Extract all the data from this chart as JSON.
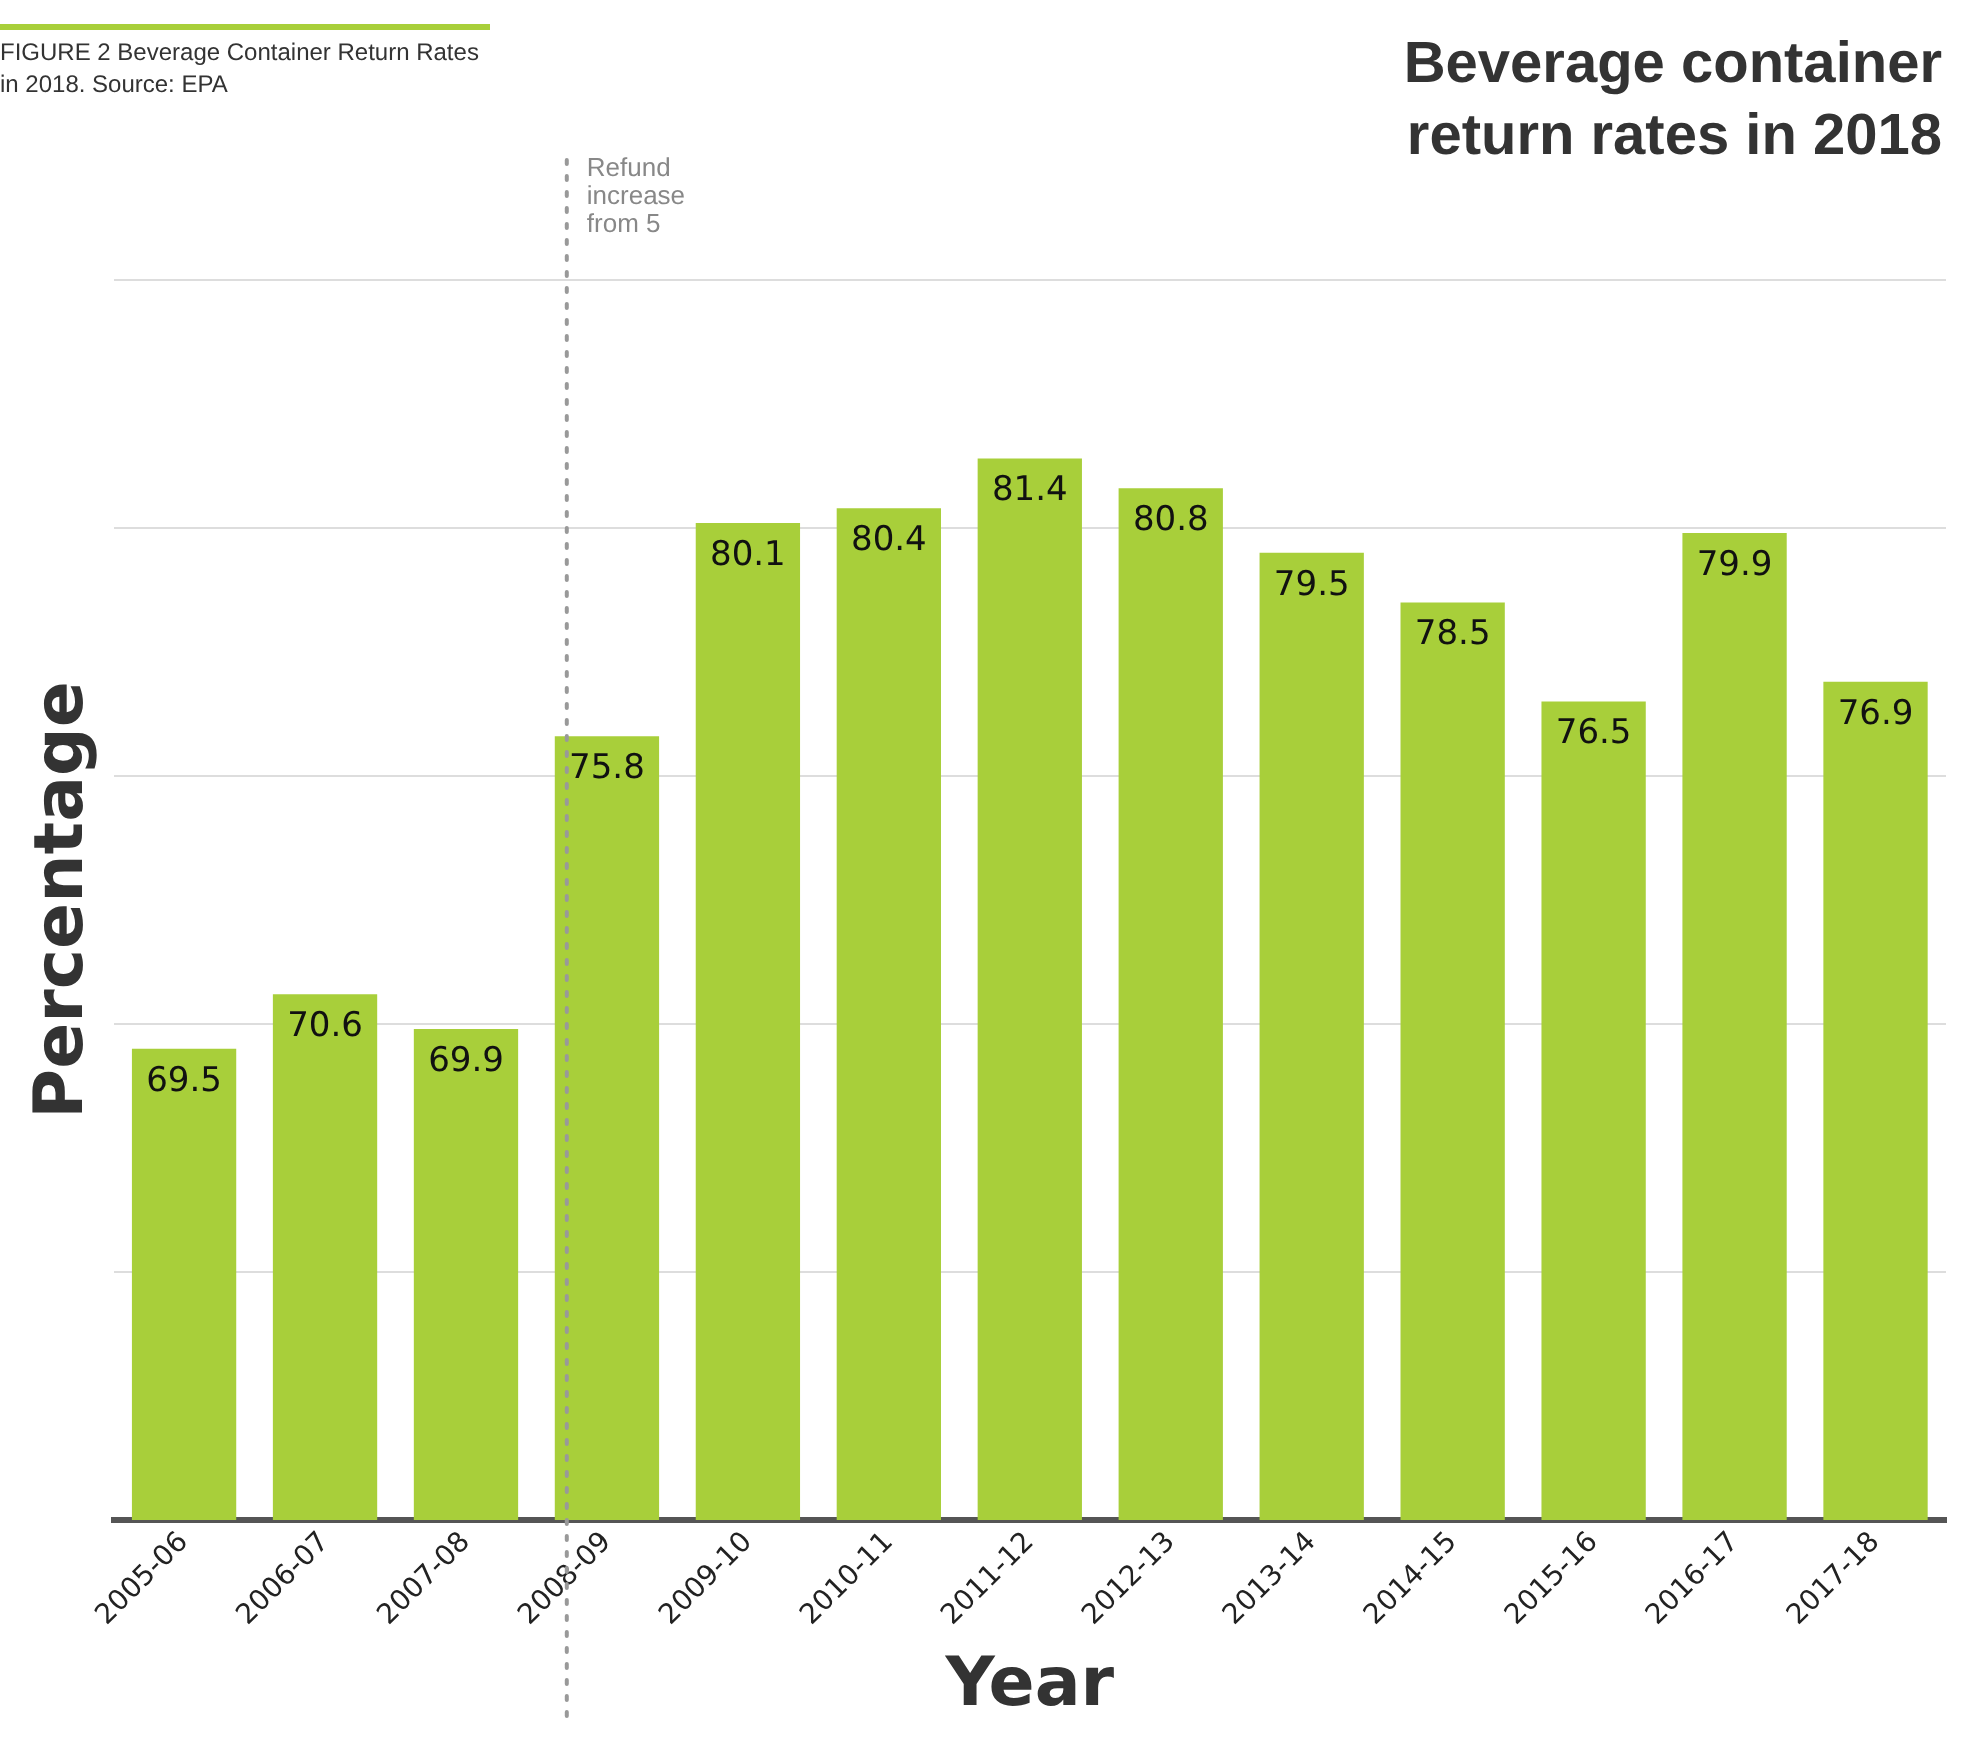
{
  "chart_data": {
    "type": "bar",
    "title": "Beverage container return rates in 2018",
    "xlabel": "Year",
    "ylabel": "Percentage",
    "annotations": [
      "FIGURE 2 Beverage Container Return Rates in 2018. Source: EPA"
    ],
    "categories": [
      "2005-06",
      "2006-07",
      "2007-08",
      "2008-09",
      "2009-10",
      "2010-11",
      "2011-12",
      "2012-13",
      "2013-14",
      "2014-15",
      "2015-16",
      "2016-17",
      "2017-18"
    ],
    "values": [
      69.5,
      70.6,
      69.9,
      75.8,
      80.1,
      80.4,
      81.4,
      80.8,
      79.5,
      78.5,
      76.5,
      79.9,
      76.9
    ],
    "color": "#a8cf3a",
    "ylim": [
      60,
      85
    ],
    "yticks": [
      {
        "value": 60,
        "label": null
      },
      {
        "value": 65,
        "label": null
      },
      {
        "value": 70,
        "label": null
      },
      {
        "value": 75,
        "label": null
      },
      {
        "value": 80,
        "label": null
      },
      {
        "value": 85,
        "label": null
      }
    ],
    "tick_labels": "x",
    "grid": "y",
    "legend": false,
    "data_labels": true,
    "ref_lines": [
      {
        "axis": "x",
        "value": "2008-09",
        "label": "Refund increase from 5",
        "color": "#999999",
        "line_style": "dotted"
      }
    ]
  }
}
